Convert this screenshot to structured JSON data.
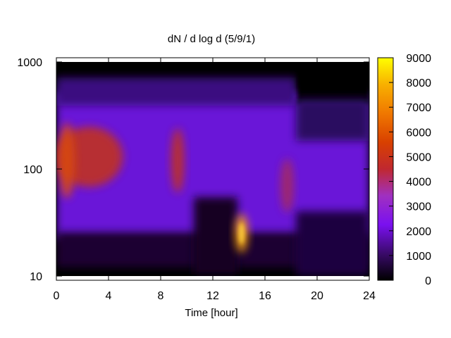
{
  "chart_data": {
    "type": "heatmap",
    "title": "dN / d log d (5/9/1)",
    "xlabel": "Time [hour]",
    "ylabel": "",
    "x_range": [
      0,
      24
    ],
    "x_ticks": [
      0,
      4,
      8,
      12,
      16,
      20,
      24
    ],
    "y_scale": "log",
    "y_range": [
      10,
      1000
    ],
    "y_ticks": [
      10,
      100,
      1000
    ],
    "colorbar": {
      "palette": "black-purple-red-orange-yellow",
      "range": [
        0,
        9000
      ],
      "ticks": [
        0,
        1000,
        2000,
        3000,
        4000,
        5000,
        6000,
        7000,
        8000,
        9000
      ]
    },
    "background_intensity_note": "",
    "features": [
      {
        "label": "",
        "x_center": 2.5,
        "x_halfwidth": 2.6,
        "y_center": 130,
        "y_log_halfwidth": 0.28,
        "value": 4500
      },
      {
        "label": "",
        "x_center": 0.8,
        "x_halfwidth": 0.6,
        "y_center": 120,
        "y_log_halfwidth": 0.35,
        "value": 5200
      },
      {
        "label": "",
        "x_center": 9.3,
        "x_halfwidth": 0.5,
        "y_center": 120,
        "y_log_halfwidth": 0.3,
        "value": 4800
      },
      {
        "label": "",
        "x_center": 14.2,
        "x_halfwidth": 0.5,
        "y_center": 25,
        "y_log_halfwidth": 0.18,
        "value": 7500
      },
      {
        "label": "",
        "x_center": 17.7,
        "x_halfwidth": 0.5,
        "y_center": 70,
        "y_log_halfwidth": 0.25,
        "value": 3500
      }
    ]
  }
}
